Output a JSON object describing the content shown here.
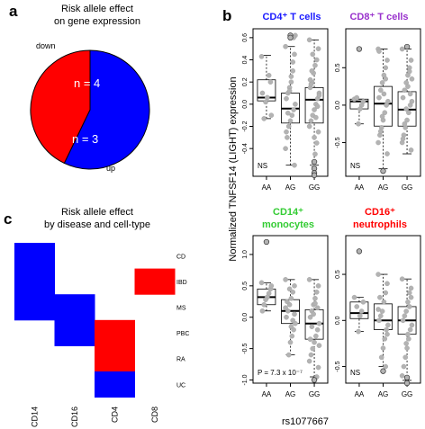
{
  "panel_labels": {
    "a": "a",
    "b": "b",
    "c": "c"
  },
  "chart_data": [
    {
      "id": "a",
      "type": "pie",
      "title": "Risk allele effect\non gene expression",
      "slices": [
        {
          "label": "down",
          "inner_label": "n = 4",
          "value": 4,
          "color": "#0000ff"
        },
        {
          "label": "up",
          "inner_label": "n = 3",
          "value": 3,
          "color": "#ff0000"
        }
      ]
    },
    {
      "id": "b",
      "type": "scatter",
      "ylabel": "Normalized TNFSF14 (LIGHT) expression",
      "xlabel": "rs1077667",
      "categories": [
        "AA",
        "AG",
        "GG"
      ],
      "panels": [
        {
          "title": "CD4⁺ T cells",
          "title_color": "#1a1aff",
          "annotation": "NS",
          "ylim": [
            -0.65,
            0.68
          ],
          "yticks": [
            -0.4,
            -0.2,
            0.0,
            0.2,
            0.4,
            0.6
          ],
          "box": [
            [
              -0.13,
              0.03,
              0.06,
              0.22,
              0.44
            ],
            [
              -0.55,
              -0.17,
              -0.04,
              0.1,
              0.52
            ],
            [
              -0.55,
              -0.17,
              0.04,
              0.15,
              0.58
            ]
          ],
          "points": [
            [
              0.43,
              0.2,
              0.26,
              0.06,
              0.02,
              -0.13,
              0.1,
              -0.1
            ],
            [
              0.52,
              0.45,
              0.3,
              0.2,
              0.15,
              0.1,
              0.05,
              0.0,
              -0.05,
              -0.1,
              -0.15,
              -0.2,
              -0.3,
              -0.4,
              -0.55,
              0.38,
              0.25,
              0.12,
              -0.08,
              -0.25,
              0.62,
              0.6
            ],
            [
              0.58,
              0.5,
              0.4,
              0.35,
              0.28,
              0.2,
              0.15,
              0.1,
              0.05,
              0.0,
              -0.05,
              -0.1,
              -0.15,
              -0.2,
              -0.25,
              -0.35,
              -0.45,
              -0.55,
              0.3,
              0.22,
              0.08,
              -0.02,
              -0.12,
              -0.3,
              0.45,
              0.18
            ]
          ],
          "outliers": [
            [],
            [
              0.62,
              0.6
            ],
            [
              -0.58,
              -0.62,
              -0.64,
              -0.52
            ]
          ]
        },
        {
          "title": "CD8⁺ T cells",
          "title_color": "#9932cc",
          "annotation": "NS",
          "ylim": [
            -0.95,
            1.02
          ],
          "yticks": [
            -0.5,
            0.0,
            0.5
          ],
          "box": [
            [
              -0.25,
              -0.05,
              0.05,
              0.08,
              0.08
            ],
            [
              -0.85,
              -0.28,
              0.02,
              0.25,
              0.75
            ],
            [
              -0.65,
              -0.28,
              -0.06,
              0.18,
              0.75
            ]
          ],
          "points": [
            [
              0.08,
              0.05,
              0.0,
              -0.05,
              -0.25,
              0.1
            ],
            [
              0.75,
              0.6,
              0.5,
              0.4,
              0.3,
              0.2,
              0.1,
              0.05,
              0.0,
              -0.1,
              -0.2,
              -0.3,
              -0.4,
              -0.5,
              -0.65,
              0.35,
              0.15,
              -0.15,
              -0.35,
              0.72
            ],
            [
              0.75,
              0.6,
              0.5,
              0.4,
              0.3,
              0.2,
              0.1,
              0.05,
              0.0,
              -0.1,
              -0.2,
              -0.3,
              -0.4,
              -0.5,
              -0.6,
              0.45,
              0.25,
              -0.05,
              -0.25,
              -0.45,
              0.35,
              0.15
            ]
          ],
          "outliers": [
            [
              0.75
            ],
            [
              -0.88
            ],
            [
              0.78
            ]
          ]
        },
        {
          "title": "CD14⁺\nmonocytes",
          "title_color": "#33cc33",
          "annotation": "P = 7.3 x 10⁻⁷",
          "ylim": [
            -1.05,
            1.3
          ],
          "yticks": [
            -1.0,
            -0.5,
            0.0,
            0.5,
            1.0
          ],
          "box": [
            [
              0.1,
              0.2,
              0.32,
              0.45,
              0.55
            ],
            [
              -0.6,
              -0.1,
              0.1,
              0.28,
              0.6
            ],
            [
              -0.95,
              -0.35,
              -0.1,
              0.12,
              0.6
            ]
          ],
          "points": [
            [
              0.55,
              0.45,
              0.38,
              0.32,
              0.28,
              0.2,
              0.1,
              0.5
            ],
            [
              0.6,
              0.5,
              0.4,
              0.3,
              0.2,
              0.1,
              0.0,
              -0.1,
              -0.2,
              -0.3,
              -0.4,
              -0.6,
              0.25,
              0.15,
              0.05,
              -0.05,
              -0.15,
              0.45
            ],
            [
              0.6,
              0.5,
              0.4,
              0.3,
              0.2,
              0.1,
              0.0,
              -0.1,
              -0.2,
              -0.3,
              -0.4,
              -0.5,
              -0.6,
              -0.7,
              -0.8,
              -0.95,
              0.22,
              0.05,
              -0.15,
              -0.35,
              -0.45,
              0.15
            ]
          ],
          "outliers": [
            [
              1.2
            ],
            [],
            [
              -1.0
            ]
          ]
        },
        {
          "title": "CD16⁺\nneutrophils",
          "title_color": "#ff0000",
          "annotation": "NS",
          "ylim": [
            -0.68,
            0.92
          ],
          "yticks": [
            -0.5,
            0.0,
            0.5
          ],
          "box": [
            [
              -0.12,
              0.02,
              0.08,
              0.2,
              0.25
            ],
            [
              -0.5,
              -0.1,
              0.0,
              0.18,
              0.5
            ],
            [
              -0.65,
              -0.15,
              0.0,
              0.15,
              0.45
            ]
          ],
          "points": [
            [
              0.25,
              0.2,
              0.1,
              0.05,
              -0.12,
              0.15
            ],
            [
              0.5,
              0.4,
              0.3,
              0.2,
              0.1,
              0.05,
              0.0,
              -0.05,
              -0.1,
              -0.2,
              -0.3,
              -0.4,
              0.25,
              0.12,
              -0.15,
              -0.5
            ],
            [
              0.45,
              0.35,
              0.3,
              0.2,
              0.1,
              0.05,
              0.0,
              -0.05,
              -0.1,
              -0.2,
              -0.3,
              -0.4,
              -0.5,
              -0.6,
              0.25,
              0.15,
              -0.15,
              -0.25
            ]
          ],
          "outliers": [
            [
              0.75
            ],
            [
              -0.55
            ],
            [
              -0.62,
              -0.68
            ]
          ]
        }
      ]
    },
    {
      "id": "c",
      "type": "heatmap",
      "title": "Risk allele effect\nby disease and cell-type",
      "rows": [
        "CD",
        "IBD",
        "MS",
        "PBC",
        "RA",
        "UC"
      ],
      "columns": [
        "CD14",
        "CD16",
        "CD4",
        "CD8"
      ],
      "cells": [
        [
          "down",
          "",
          "",
          ""
        ],
        [
          "down",
          "",
          "",
          "up"
        ],
        [
          "down",
          "down",
          "",
          ""
        ],
        [
          "",
          "down",
          "up",
          ""
        ],
        [
          "",
          "",
          "up",
          ""
        ],
        [
          "",
          "",
          "down",
          ""
        ]
      ],
      "colors": {
        "up": "#ff0000",
        "down": "#0000ff"
      }
    }
  ]
}
